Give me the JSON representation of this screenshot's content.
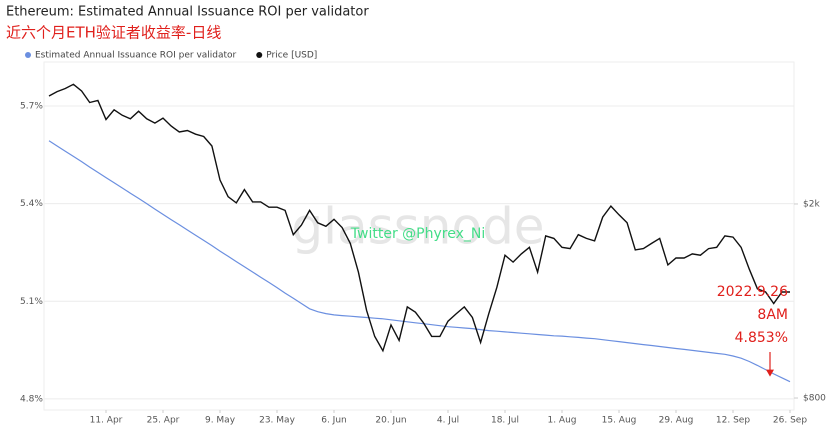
{
  "chart_data": {
    "type": "line",
    "title": "Ethereum: Estimated Annual Issuance ROI per validator",
    "subtitle": "近六个月ETH验证者收益率-日线",
    "watermark": "glassnode",
    "credit": "Twitter @Phyrex_Ni",
    "annotations": [
      "2022.9.26",
      "8AM",
      "4.853%"
    ],
    "annotation_color": "#e0201c",
    "x": [
      "28. Mar",
      "30. Mar",
      "1. Apr",
      "3. Apr",
      "5. Apr",
      "7. Apr",
      "9. Apr",
      "11. Apr",
      "13. Apr",
      "15. Apr",
      "17. Apr",
      "19. Apr",
      "21. Apr",
      "23. Apr",
      "25. Apr",
      "27. Apr",
      "29. Apr",
      "1. May",
      "3. May",
      "5. May",
      "7. May",
      "9. May",
      "11. May",
      "13. May",
      "15. May",
      "17. May",
      "19. May",
      "21. May",
      "23. May",
      "25. May",
      "27. May",
      "29. May",
      "31. May",
      "2. Jun",
      "4. Jun",
      "6. Jun",
      "8. Jun",
      "10. Jun",
      "12. Jun",
      "14. Jun",
      "16. Jun",
      "18. Jun",
      "20. Jun",
      "22. Jun",
      "24. Jun",
      "26. Jun",
      "28. Jun",
      "30. Jun",
      "2. Jul",
      "4. Jul",
      "6. Jul",
      "8. Jul",
      "10. Jul",
      "12. Jul",
      "14. Jul",
      "16. Jul",
      "18. Jul",
      "20. Jul",
      "22. Jul",
      "24. Jul",
      "26. Jul",
      "28. Jul",
      "30. Jul",
      "1. Aug",
      "3. Aug",
      "5. Aug",
      "7. Aug",
      "9. Aug",
      "11. Aug",
      "13. Aug",
      "15. Aug",
      "17. Aug",
      "19. Aug",
      "21. Aug",
      "23. Aug",
      "25. Aug",
      "27. Aug",
      "29. Aug",
      "31. Aug",
      "2. Sep",
      "4. Sep",
      "6. Sep",
      "8. Sep",
      "10. Sep",
      "12. Sep",
      "14. Sep",
      "16. Sep",
      "18. Sep",
      "20. Sep",
      "22. Sep",
      "24. Sep",
      "26. Sep"
    ],
    "xticks": [
      "11. Apr",
      "25. Apr",
      "9. May",
      "23. May",
      "6. Jun",
      "20. Jun",
      "4. Jul",
      "18. Jul",
      "1. Aug",
      "15. Aug",
      "29. Aug",
      "12. Sep",
      "26. Sep"
    ],
    "ylim": [
      4.766,
      5.835
    ],
    "yticks": [
      {
        "value": 5.7,
        "label": "5.7%"
      },
      {
        "value": 5.4,
        "label": "5.4%"
      },
      {
        "value": 5.1,
        "label": "5.1%"
      },
      {
        "value": 4.8,
        "label": "4.8%"
      }
    ],
    "y2lim": [
      756,
      3910
    ],
    "y2log": true,
    "y2ticks": [
      {
        "value": 2000,
        "label": "$2k"
      },
      {
        "value": 800,
        "label": "$800"
      }
    ],
    "grid": true,
    "series": [
      {
        "name": "Estimated Annual Issuance ROI per validator",
        "color": "#6b8fe0",
        "values": [
          5.593,
          5.577,
          5.561,
          5.545,
          5.529,
          5.512,
          5.496,
          5.48,
          5.464,
          5.448,
          5.432,
          5.416,
          5.4,
          5.383,
          5.367,
          5.351,
          5.335,
          5.319,
          5.303,
          5.287,
          5.271,
          5.254,
          5.238,
          5.222,
          5.206,
          5.19,
          5.174,
          5.158,
          5.142,
          5.125,
          5.109,
          5.093,
          5.077,
          5.068,
          5.062,
          5.058,
          5.056,
          5.054,
          5.052,
          5.05,
          5.048,
          5.046,
          5.043,
          5.04,
          5.037,
          5.034,
          5.031,
          5.028,
          5.025,
          5.022,
          5.02,
          5.018,
          5.016,
          5.013,
          5.01,
          5.008,
          5.006,
          5.004,
          5.002,
          5.0,
          4.998,
          4.996,
          4.994,
          4.993,
          4.991,
          4.989,
          4.987,
          4.985,
          4.982,
          4.979,
          4.976,
          4.973,
          4.97,
          4.967,
          4.964,
          4.961,
          4.958,
          4.955,
          4.952,
          4.949,
          4.946,
          4.943,
          4.94,
          4.937,
          4.932,
          4.925,
          4.915,
          4.903,
          4.89,
          4.877,
          4.865,
          4.853
        ]
      },
      {
        "name": "Price [USD]",
        "color": "#111111",
        "axis": "y2",
        "values": [
          3330,
          3400,
          3450,
          3520,
          3410,
          3230,
          3260,
          2980,
          3120,
          3040,
          2990,
          3100,
          2990,
          2930,
          3000,
          2890,
          2810,
          2830,
          2780,
          2750,
          2630,
          2240,
          2070,
          2010,
          2140,
          2020,
          2020,
          1970,
          1970,
          1940,
          1730,
          1810,
          1940,
          1830,
          1800,
          1860,
          1790,
          1660,
          1450,
          1210,
          1070,
          1000,
          1130,
          1050,
          1230,
          1200,
          1140,
          1070,
          1070,
          1150,
          1190,
          1230,
          1170,
          1040,
          1190,
          1350,
          1570,
          1520,
          1580,
          1630,
          1450,
          1720,
          1700,
          1630,
          1620,
          1730,
          1700,
          1680,
          1880,
          1980,
          1900,
          1830,
          1610,
          1620,
          1660,
          1700,
          1500,
          1550,
          1550,
          1580,
          1570,
          1620,
          1630,
          1720,
          1710,
          1630,
          1470,
          1340,
          1320,
          1250,
          1320,
          1320
        ]
      }
    ]
  }
}
